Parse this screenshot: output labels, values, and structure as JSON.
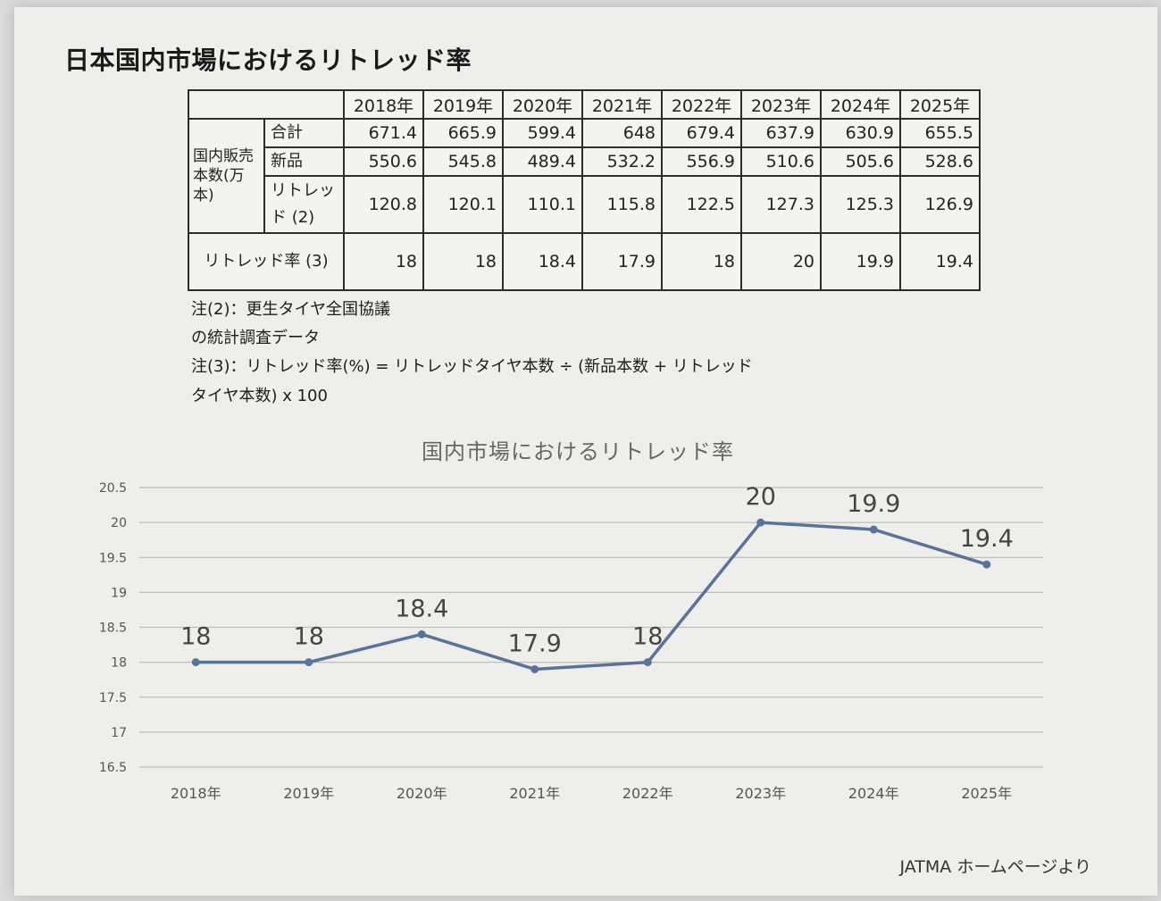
{
  "title": "日本国内市場におけるリトレッド率",
  "table": {
    "years": [
      "2018年",
      "2019年",
      "2020年",
      "2021年",
      "2022年",
      "2023年",
      "2024年",
      "2025年"
    ],
    "group_label": "国内販売本数(万本)",
    "rows": [
      {
        "label": "合計",
        "values": [
          "671.4",
          "665.9",
          "599.4",
          "648",
          "679.4",
          "637.9",
          "630.9",
          "655.5"
        ]
      },
      {
        "label": "新品",
        "values": [
          "550.6",
          "545.8",
          "489.4",
          "532.2",
          "556.9",
          "510.6",
          "505.6",
          "528.6"
        ]
      },
      {
        "label": "リトレッド (2)",
        "values": [
          "120.8",
          "120.1",
          "110.1",
          "115.8",
          "122.5",
          "127.3",
          "125.3",
          "126.9"
        ]
      }
    ],
    "rate_row": {
      "label": "リトレッド率 (3)",
      "values": [
        "18",
        "18",
        "18.4",
        "17.9",
        "18",
        "20",
        "19.9",
        "19.4"
      ]
    }
  },
  "notes": {
    "note2_line1": "注(2)：更生タイヤ全国協議",
    "note2_line2": "の統計調査データ",
    "note3_line1": "注(3)：リトレッド率(%) = リトレッドタイヤ本数 ÷ (新品本数 + リトレッド",
    "note3_line2": "タイヤ本数) x 100"
  },
  "chart_data": {
    "type": "line",
    "title": "国内市場におけるリトレッド率",
    "categories": [
      "2018年",
      "2019年",
      "2020年",
      "2021年",
      "2022年",
      "2023年",
      "2024年",
      "2025年"
    ],
    "series": [
      {
        "values": [
          18,
          18,
          18.4,
          17.9,
          18,
          20,
          19.9,
          19.4
        ]
      }
    ],
    "data_labels": [
      "18",
      "18",
      "18.4",
      "17.9",
      "18",
      "20",
      "19.9",
      "19.4"
    ],
    "ylim": [
      16.5,
      20.5
    ],
    "yticks": [
      "16.5",
      "17",
      "17.5",
      "18",
      "18.5",
      "19",
      "19.5",
      "20",
      "20.5"
    ],
    "grid": true,
    "line_color": "#5b7299",
    "grid_color": "#bdbdbd"
  },
  "source": "JATMA ホームページより"
}
